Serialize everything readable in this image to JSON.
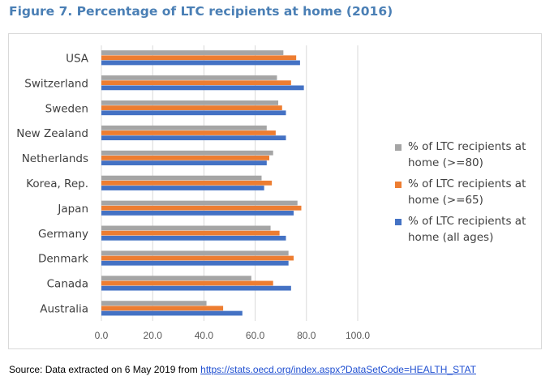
{
  "title": "Figure 7. Percentage of LTC recipients at home (2016)",
  "source": {
    "text": "Source: Data extracted on 6 May 2019 from",
    "link": "https://stats.oecd.org/index.aspx?DataSetCode=HEALTH_STAT"
  },
  "chart_data": {
    "type": "bar",
    "orientation": "horizontal",
    "categories": [
      "USA",
      "Switzerland",
      "Sweden",
      "New Zealand",
      "Netherlands",
      "Korea, Rep.",
      "Japan",
      "Germany",
      "Denmark",
      "Canada",
      "Australia"
    ],
    "series": [
      {
        "name": "% of LTC recipients at home (>=80)",
        "color": "#a5a5a5",
        "values": [
          71,
          68.5,
          69,
          64.5,
          67,
          62.5,
          76.5,
          66,
          73,
          58.5,
          41
        ]
      },
      {
        "name": "% of LTC recipients at home (>=65)",
        "color": "#ed7d31",
        "values": [
          76,
          74,
          70.5,
          68,
          65.5,
          66.5,
          78,
          69.5,
          75,
          67,
          47.5
        ]
      },
      {
        "name": "% of LTC recipients at home (all ages)",
        "color": "#4472c4",
        "values": [
          77.5,
          79,
          72,
          72,
          64.5,
          63.5,
          75,
          72,
          73,
          74,
          55
        ]
      }
    ],
    "xticks": [
      "0.0",
      "20.0",
      "40.0",
      "60.0",
      "80.0",
      "100.0"
    ],
    "xlim": [
      0,
      100
    ],
    "grid": "vertical",
    "legend": "right",
    "legend_lines": [
      [
        "% of LTC recipients at",
        "home (>=80)"
      ],
      [
        "% of LTC recipients at",
        "home (>=65)"
      ],
      [
        "% of LTC recipients at",
        "home (all ages)"
      ]
    ]
  }
}
